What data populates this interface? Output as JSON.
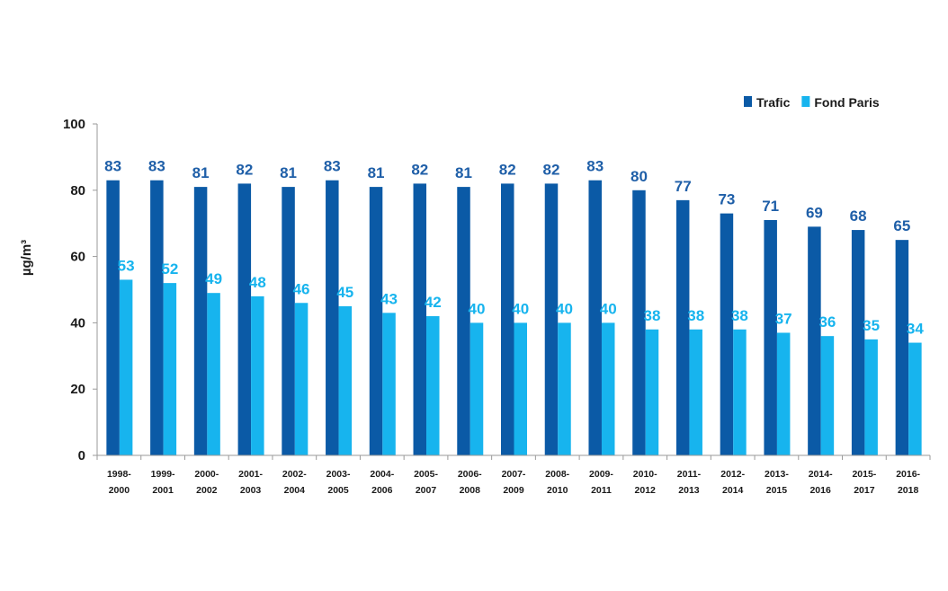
{
  "chart_data": {
    "type": "bar",
    "title": "",
    "xlabel": "",
    "ylabel": "µg/m³",
    "ylim": [
      0,
      100
    ],
    "yticks": [
      "0",
      "20",
      "40",
      "60",
      "80",
      "100"
    ],
    "grid": false,
    "legend_position": "top-right",
    "categories": [
      [
        "1998-",
        "2000"
      ],
      [
        "1999-",
        "2001"
      ],
      [
        "2000-",
        "2002"
      ],
      [
        "2001-",
        "2003"
      ],
      [
        "2002-",
        "2004"
      ],
      [
        "2003-",
        "2005"
      ],
      [
        "2004-",
        "2006"
      ],
      [
        "2005-",
        "2007"
      ],
      [
        "2006-",
        "2008"
      ],
      [
        "2007-",
        "2009"
      ],
      [
        "2008-",
        "2010"
      ],
      [
        "2009-",
        "2011"
      ],
      [
        "2010-",
        "2012"
      ],
      [
        "2011-",
        "2013"
      ],
      [
        "2012-",
        "2014"
      ],
      [
        "2013-",
        "2015"
      ],
      [
        "2014-",
        "2016"
      ],
      [
        "2015-",
        "2017"
      ],
      [
        "2016-",
        "2018"
      ]
    ],
    "series": [
      {
        "name": "Trafic",
        "color": "#0b5aa6",
        "label_color": "#1f5fa8",
        "values": [
          83,
          83,
          81,
          82,
          81,
          83,
          81,
          82,
          81,
          82,
          82,
          83,
          80,
          77,
          73,
          71,
          69,
          68,
          65
        ]
      },
      {
        "name": "Fond Paris",
        "color": "#17b4ee",
        "label_color": "#17b4ee",
        "values": [
          53,
          52,
          49,
          48,
          46,
          45,
          43,
          42,
          40,
          40,
          40,
          40,
          38,
          38,
          38,
          37,
          36,
          35,
          34
        ]
      }
    ]
  }
}
